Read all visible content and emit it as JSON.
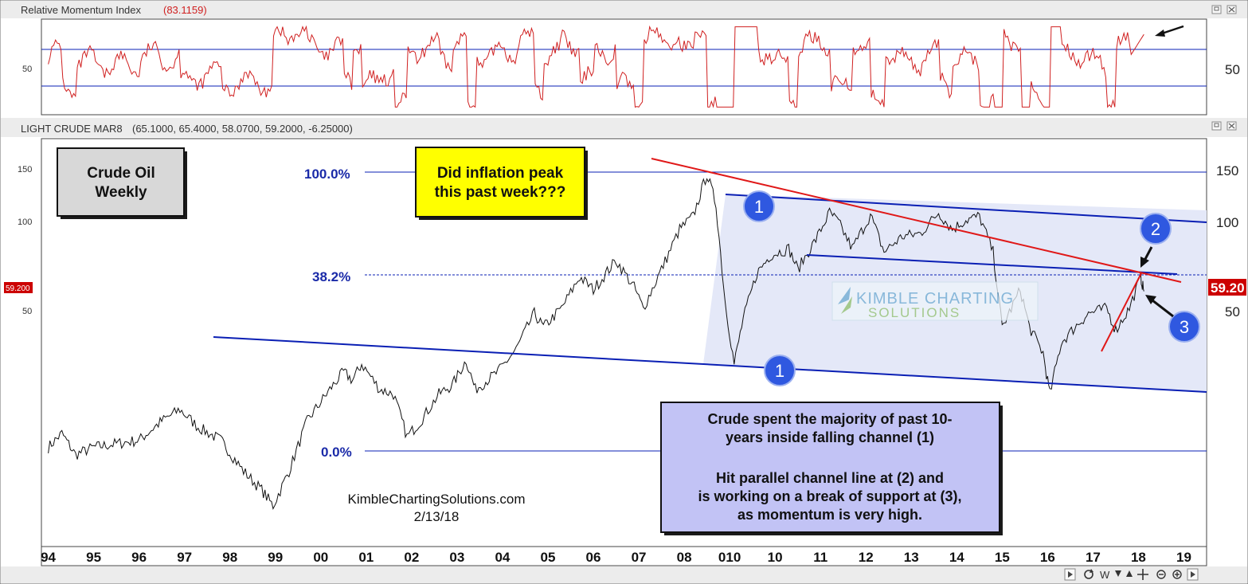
{
  "rmi_panel": {
    "title": "Relative Momentum Index",
    "value": "(83.1159)",
    "tick_label": "50"
  },
  "price_panel": {
    "title": "LIGHT CRUDE MAR8",
    "ohlc": "(65.1000, 65.4000, 58.0700, 59.2000, -6.25000)",
    "ticks_left": [
      "150",
      "100",
      "50"
    ],
    "ticks_right": [
      "150",
      "100",
      "50"
    ],
    "last_price_left": "59.200",
    "last_price_right": "59.20"
  },
  "x_axis": {
    "labels": [
      "94",
      "95",
      "96",
      "97",
      "98",
      "99",
      "00",
      "01",
      "02",
      "03",
      "04",
      "05",
      "06",
      "07",
      "08",
      "010",
      "10",
      "11",
      "12",
      "13",
      "14",
      "15",
      "16",
      "17",
      "18",
      "19"
    ]
  },
  "annotations": {
    "title_box": [
      "Crude Oil",
      "Weekly"
    ],
    "question_box": [
      "Did inflation peak",
      "this past week???"
    ],
    "fib_100": "100.0%",
    "fib_382": "38.2%",
    "fib_0": "0.0%",
    "circle_1a": "1",
    "circle_1b": "1",
    "circle_2": "2",
    "circle_3": "3",
    "info_box": [
      "Crude spent the majority of past 10-",
      "years inside falling channel (1)",
      "",
      "Hit parallel channel line at (2) and",
      "is working on a break of support at (3),",
      "as momentum is very high."
    ],
    "credit": "KimbleChartingSolutions.com",
    "date": "2/13/18",
    "watermark_line1": "KIMBLE CHARTING",
    "watermark_line2": "SOLUTIONS"
  },
  "colors": {
    "channel_blue": "#0a1fb4",
    "trend_red": "#e01818",
    "fib_text": "#1a2aa8",
    "rmi_line": "#d02020",
    "yellow_box": "#ffff00",
    "info_box": "#c2c3f5",
    "title_box": "#d8d8d8",
    "channel_fill": "#e4e8f8",
    "circle": "#2f58e0"
  },
  "chart_data": [
    {
      "type": "line",
      "title": "Relative Momentum Index",
      "series": [
        {
          "name": "Relative Momentum Index",
          "values_note": "oscillator",
          "last": 83.1159
        }
      ],
      "ylabel": "",
      "yticks": [
        50
      ],
      "levels": [
        70,
        30
      ]
    },
    {
      "type": "line",
      "title": "LIGHT CRUDE MAR8",
      "x": [
        1994,
        1995,
        1996,
        1997,
        1998,
        1999,
        2000,
        2001,
        2002,
        2003,
        2004,
        2005,
        2006,
        2007,
        2008,
        2009,
        2010,
        2011,
        2012,
        2013,
        2014,
        2015,
        2016,
        2017,
        2018
      ],
      "series": [
        {
          "name": "LIGHT CRUDE MAR8",
          "points": [
            [
              1994.0,
              18
            ],
            [
              1994.3,
              20
            ],
            [
              1994.6,
              17
            ],
            [
              1995.0,
              18
            ],
            [
              1995.5,
              18.5
            ],
            [
              1996.0,
              19
            ],
            [
              1996.5,
              22
            ],
            [
              1996.9,
              24
            ],
            [
              1997.3,
              21
            ],
            [
              1997.8,
              19
            ],
            [
              1998.3,
              15
            ],
            [
              1998.7,
              13
            ],
            [
              1998.95,
              11.5
            ],
            [
              1999.3,
              15
            ],
            [
              1999.7,
              22
            ],
            [
              2000.2,
              28
            ],
            [
              2000.5,
              32
            ],
            [
              2000.7,
              30
            ],
            [
              2000.9,
              34
            ],
            [
              2001.3,
              28
            ],
            [
              2001.6,
              27
            ],
            [
              2001.9,
              19.5
            ],
            [
              2002.2,
              22
            ],
            [
              2002.6,
              27
            ],
            [
              2002.9,
              29
            ],
            [
              2003.2,
              35
            ],
            [
              2003.4,
              28
            ],
            [
              2003.9,
              32
            ],
            [
              2004.3,
              38
            ],
            [
              2004.7,
              50
            ],
            [
              2004.9,
              45
            ],
            [
              2005.3,
              52
            ],
            [
              2005.7,
              66
            ],
            [
              2006.0,
              60
            ],
            [
              2006.5,
              75
            ],
            [
              2006.9,
              61
            ],
            [
              2007.1,
              52
            ],
            [
              2007.5,
              70
            ],
            [
              2007.9,
              95
            ],
            [
              2008.2,
              105
            ],
            [
              2008.5,
              145
            ],
            [
              2008.7,
              115
            ],
            [
              2008.9,
              55
            ],
            [
              2009.1,
              34
            ],
            [
              2009.3,
              48
            ],
            [
              2009.6,
              68
            ],
            [
              2009.9,
              78
            ],
            [
              2010.3,
              82
            ],
            [
              2010.5,
              70
            ],
            [
              2010.9,
              88
            ],
            [
              2011.2,
              108
            ],
            [
              2011.4,
              100
            ],
            [
              2011.7,
              82
            ],
            [
              2012.1,
              106
            ],
            [
              2012.4,
              80
            ],
            [
              2012.8,
              90
            ],
            [
              2013.2,
              92
            ],
            [
              2013.6,
              108
            ],
            [
              2013.9,
              95
            ],
            [
              2014.2,
              102
            ],
            [
              2014.5,
              105
            ],
            [
              2014.8,
              80
            ],
            [
              2015.0,
              45
            ],
            [
              2015.4,
              60
            ],
            [
              2015.6,
              45
            ],
            [
              2015.9,
              37
            ],
            [
              2016.05,
              27
            ],
            [
              2016.3,
              40
            ],
            [
              2016.6,
              45
            ],
            [
              2016.9,
              50
            ],
            [
              2017.3,
              52
            ],
            [
              2017.5,
              44
            ],
            [
              2017.8,
              52
            ],
            [
              2018.05,
              66
            ],
            [
              2018.12,
              59.2
            ]
          ]
        }
      ],
      "fib_levels": [
        {
          "label": "100.0%",
          "value": 147
        },
        {
          "label": "38.2%",
          "value": 72
        },
        {
          "label": "0.0%",
          "value": 17.5
        }
      ],
      "yticks": [
        50,
        100,
        150
      ],
      "last_price": 59.2
    }
  ]
}
